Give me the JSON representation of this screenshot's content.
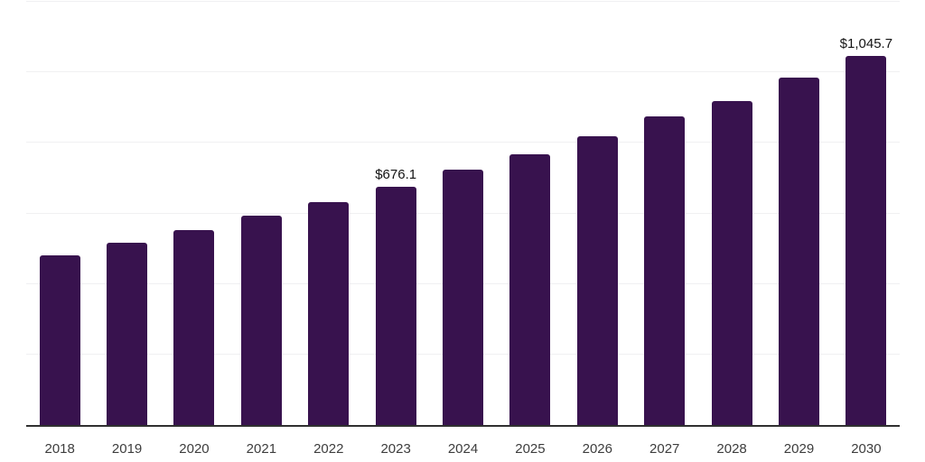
{
  "chart_data": {
    "type": "bar",
    "title": "",
    "xlabel": "",
    "ylabel": "",
    "categories": [
      "2018",
      "2019",
      "2020",
      "2021",
      "2022",
      "2023",
      "2024",
      "2025",
      "2026",
      "2027",
      "2028",
      "2029",
      "2030"
    ],
    "values": [
      480.2,
      515.8,
      552.2,
      593.6,
      632.8,
      676.1,
      723.4,
      768.4,
      819.3,
      875.3,
      919.3,
      984.7,
      1045.7
    ],
    "value_labels": [
      "",
      "",
      "",
      "",
      "",
      "$676.1",
      "",
      "",
      "",
      "",
      "",
      "",
      "$1,045.7"
    ],
    "ylim": [
      0,
      1200
    ],
    "gridline_step": 200,
    "grid": true,
    "legend": false,
    "y_axis_tick_labels_visible": false,
    "colors": {
      "bar": "#38124e",
      "gridline": "#f0f0f2",
      "axis_line": "#303030",
      "value_label_text": "#141414",
      "x_tick_text": "#3d3d3d",
      "background": "#ffffff"
    }
  }
}
